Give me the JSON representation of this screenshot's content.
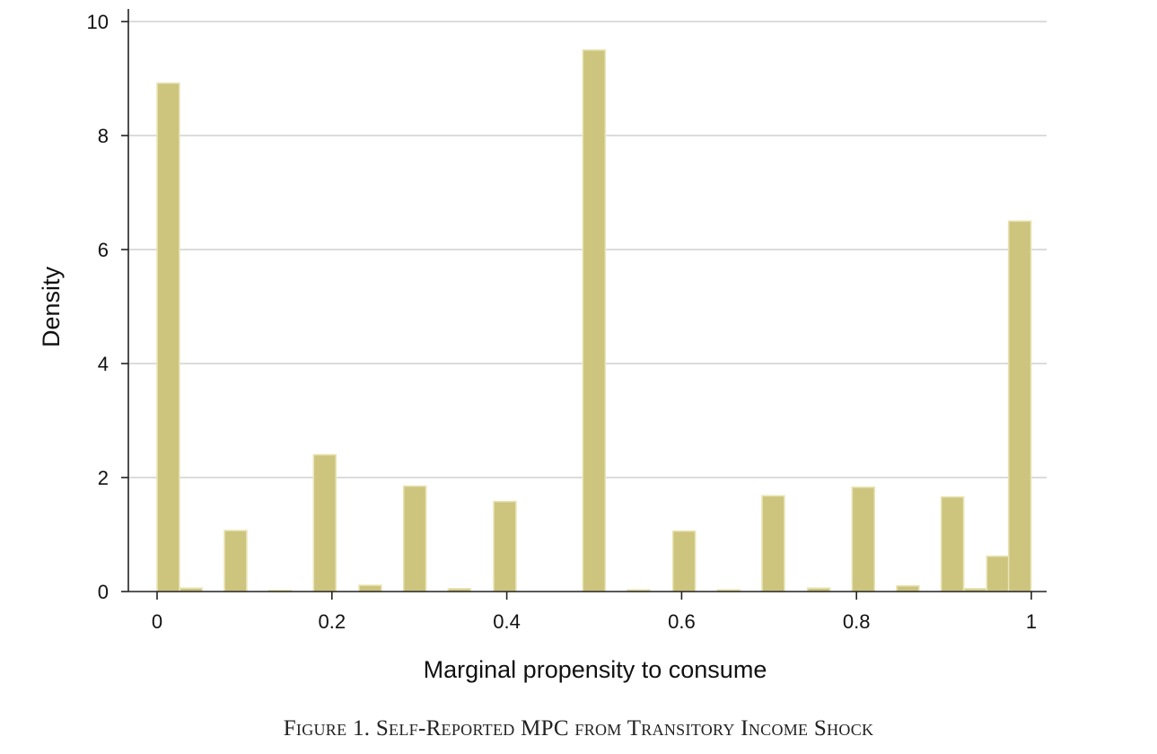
{
  "caption": "Figure 1. Self-Reported MPC from Transitory Income Shock",
  "chart_data": {
    "type": "bar",
    "title": "",
    "xlabel": "Marginal propensity to consume",
    "ylabel": "Density",
    "xlim": [
      -0.03,
      1.01
    ],
    "ylim": [
      0,
      10
    ],
    "x_ticks": [
      0,
      0.2,
      0.4,
      0.6,
      0.8,
      1
    ],
    "x_tick_labels": [
      "0",
      "0.2",
      "0.4",
      "0.6",
      "0.8",
      "1"
    ],
    "y_ticks": [
      0,
      2,
      4,
      6,
      8,
      10
    ],
    "y_tick_labels": [
      "0",
      "2",
      "4",
      "6",
      "8",
      "10"
    ],
    "grid": true,
    "bin_width": 0.0256,
    "bar_color": "#cdc47d",
    "bar_edge_color": "#e9e4b6",
    "bins": [
      {
        "x": 0.0,
        "density": 8.92
      },
      {
        "x": 0.026,
        "density": 0.06
      },
      {
        "x": 0.051,
        "density": 0.0
      },
      {
        "x": 0.077,
        "density": 1.07
      },
      {
        "x": 0.103,
        "density": 0.0
      },
      {
        "x": 0.128,
        "density": 0.02
      },
      {
        "x": 0.154,
        "density": 0.0
      },
      {
        "x": 0.179,
        "density": 2.4
      },
      {
        "x": 0.205,
        "density": 0.0
      },
      {
        "x": 0.231,
        "density": 0.11
      },
      {
        "x": 0.256,
        "density": 0.0
      },
      {
        "x": 0.282,
        "density": 1.85
      },
      {
        "x": 0.308,
        "density": 0.0
      },
      {
        "x": 0.333,
        "density": 0.05
      },
      {
        "x": 0.359,
        "density": 0.0
      },
      {
        "x": 0.385,
        "density": 1.58
      },
      {
        "x": 0.41,
        "density": 0.0
      },
      {
        "x": 0.436,
        "density": 0.0
      },
      {
        "x": 0.462,
        "density": 0.0
      },
      {
        "x": 0.487,
        "density": 9.5
      },
      {
        "x": 0.513,
        "density": 0.0
      },
      {
        "x": 0.538,
        "density": 0.03
      },
      {
        "x": 0.564,
        "density": 0.0
      },
      {
        "x": 0.59,
        "density": 1.06
      },
      {
        "x": 0.615,
        "density": 0.0
      },
      {
        "x": 0.641,
        "density": 0.03
      },
      {
        "x": 0.667,
        "density": 0.0
      },
      {
        "x": 0.692,
        "density": 1.68
      },
      {
        "x": 0.718,
        "density": 0.0
      },
      {
        "x": 0.744,
        "density": 0.06
      },
      {
        "x": 0.769,
        "density": 0.0
      },
      {
        "x": 0.795,
        "density": 1.83
      },
      {
        "x": 0.821,
        "density": 0.0
      },
      {
        "x": 0.846,
        "density": 0.1
      },
      {
        "x": 0.872,
        "density": 0.0
      },
      {
        "x": 0.897,
        "density": 1.66
      },
      {
        "x": 0.923,
        "density": 0.05
      },
      {
        "x": 0.949,
        "density": 0.62
      },
      {
        "x": 0.974,
        "density": 6.5
      }
    ]
  }
}
